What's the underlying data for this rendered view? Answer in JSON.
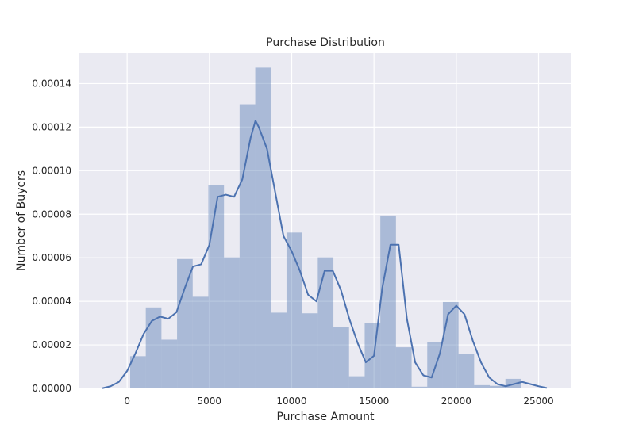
{
  "chart_data": {
    "type": "bar",
    "title": "Purchase Distribution",
    "xlabel": "Purchase Amount",
    "ylabel": "Number of Buyers",
    "xlim": [
      -2900,
      27000
    ],
    "ylim": [
      0,
      0.000154
    ],
    "grid": true,
    "legend": "none",
    "x_ticks": [
      0,
      5000,
      10000,
      15000,
      20000,
      25000
    ],
    "x_tick_labels": [
      "0",
      "5000",
      "10000",
      "15000",
      "20000",
      "25000"
    ],
    "y_ticks": [
      0,
      2e-05,
      4e-05,
      6e-05,
      8e-05,
      0.0001,
      0.00012,
      0.00014
    ],
    "y_tick_labels": [
      "0.00000",
      "0.00002",
      "0.00004",
      "0.00006",
      "0.00008",
      "0.00010",
      "0.00012",
      "0.00014"
    ],
    "histogram": {
      "bin_edges": [
        185,
        1135,
        2085,
        3035,
        3985,
        4935,
        5885,
        6835,
        7785,
        8735,
        9685,
        10635,
        11585,
        12535,
        13485,
        14435,
        15385,
        16335,
        17285,
        18235,
        19185,
        20135,
        21085,
        22035,
        22985,
        23935
      ],
      "density": [
        1.48e-05,
        3.72e-05,
        2.24e-05,
        5.94e-05,
        4.21e-05,
        9.35e-05,
        6.02e-05,
        0.0001305,
        0.0001473,
        3.48e-05,
        7.16e-05,
        3.45e-05,
        6.02e-05,
        2.83e-05,
        5.6e-06,
        3.01e-05,
        7.94e-05,
        1.89e-05,
        8e-07,
        2.14e-05,
        3.97e-05,
        1.57e-05,
        1.5e-06,
        1.2e-06,
        4.4e-06
      ]
    },
    "kde": {
      "x": [
        -1500,
        -1000,
        -500,
        0,
        500,
        1000,
        1500,
        2000,
        2500,
        3000,
        3500,
        4000,
        4500,
        5000,
        5500,
        6000,
        6500,
        7000,
        7500,
        7800,
        8000,
        8500,
        9000,
        9500,
        10000,
        10500,
        11000,
        11500,
        12000,
        12500,
        13000,
        13500,
        14000,
        14500,
        15000,
        15500,
        16000,
        16500,
        17000,
        17500,
        18000,
        18500,
        19000,
        19500,
        20000,
        20500,
        21000,
        21500,
        22000,
        22500,
        23000,
        23500,
        24000,
        24500,
        25000,
        25500
      ],
      "y": [
        1e-07,
        1e-06,
        3e-06,
        8e-06,
        1.6e-05,
        2.5e-05,
        3.1e-05,
        3.3e-05,
        3.2e-05,
        3.5e-05,
        4.6e-05,
        5.6e-05,
        5.7e-05,
        6.6e-05,
        8.8e-05,
        8.9e-05,
        8.8e-05,
        9.6e-05,
        0.000115,
        0.000123,
        0.00012,
        0.00011,
        9e-05,
        7e-05,
        6.3e-05,
        5.4e-05,
        4.3e-05,
        4e-05,
        5.4e-05,
        5.4e-05,
        4.5e-05,
        3.2e-05,
        2.1e-05,
        1.2e-05,
        1.5e-05,
        4.6e-05,
        6.6e-05,
        6.6e-05,
        3.2e-05,
        1.2e-05,
        6e-06,
        5e-06,
        1.6e-05,
        3.4e-05,
        3.8e-05,
        3.4e-05,
        2.2e-05,
        1.2e-05,
        5e-06,
        2e-06,
        1e-06,
        2e-06,
        3e-06,
        2e-06,
        1e-06,
        2e-07
      ]
    },
    "colors": {
      "plot_background": "#eaeaf2",
      "grid": "#ffffff",
      "bars": "#4c72b0",
      "bar_opacity": 0.4,
      "kde_line": "#4c72b0"
    }
  }
}
